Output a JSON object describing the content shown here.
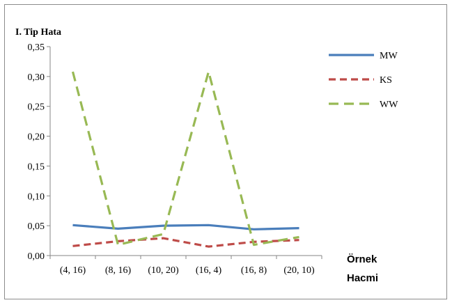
{
  "chart_data": {
    "type": "line",
    "ylabel": "I. Tip Hata",
    "xlabel_line1": "Örnek",
    "xlabel_line2": "Hacmi",
    "categories": [
      "(4, 16)",
      "(8, 16)",
      "(10, 20)",
      "(16, 4)",
      "(16, 8)",
      "(20, 10)"
    ],
    "ylim": [
      0,
      0.35
    ],
    "yticks": [
      "0,00",
      "0,05",
      "0,10",
      "0,15",
      "0,20",
      "0,25",
      "0,30",
      "0,35"
    ],
    "grid": false,
    "legend_position": "right",
    "series": [
      {
        "name": "MW",
        "color": "#4a7ebb",
        "dash": "solid",
        "values": [
          0.051,
          0.045,
          0.05,
          0.051,
          0.044,
          0.046
        ]
      },
      {
        "name": "KS",
        "color": "#be4b48",
        "dash": "dashed",
        "values": [
          0.016,
          0.024,
          0.029,
          0.015,
          0.023,
          0.026
        ]
      },
      {
        "name": "WW",
        "color": "#98b954",
        "dash": "dashed",
        "values": [
          0.308,
          0.018,
          0.036,
          0.308,
          0.018,
          0.031
        ]
      }
    ]
  }
}
